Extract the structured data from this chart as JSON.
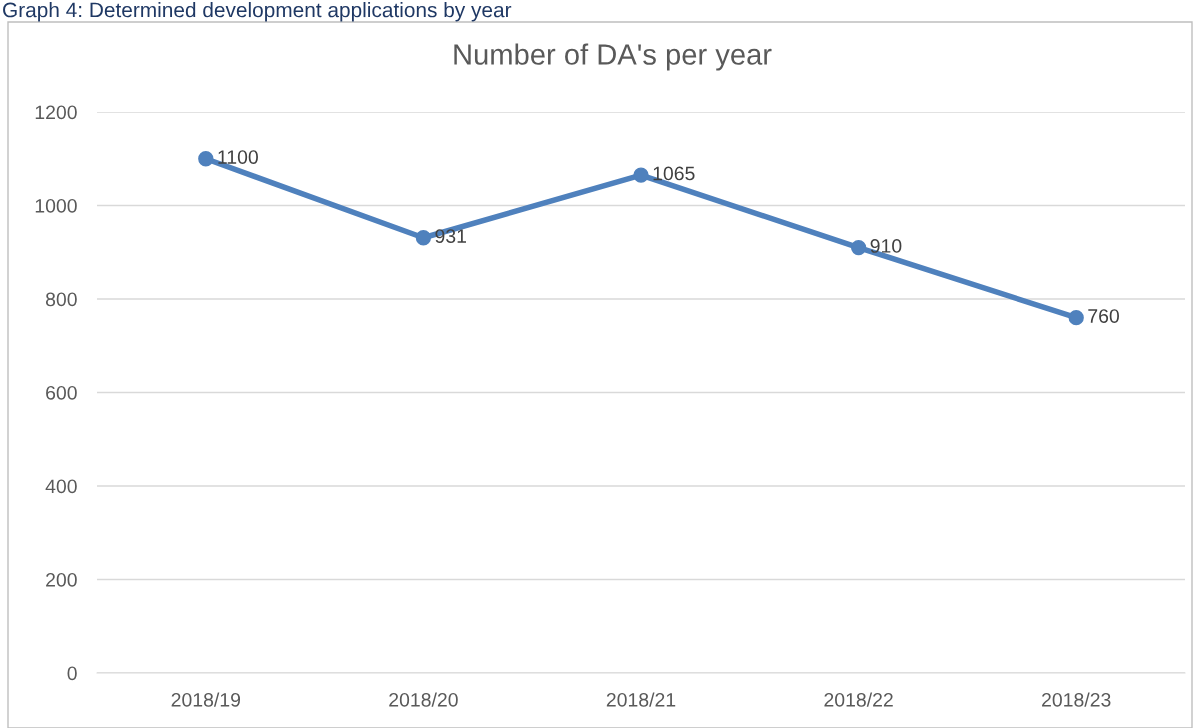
{
  "chart_data": {
    "type": "line",
    "title": "Number of DA's per year",
    "annotations": [
      "Graph 4: Determined development applications by year"
    ],
    "categories": [
      "2018/19",
      "2018/20",
      "2018/21",
      "2018/22",
      "2018/23"
    ],
    "series": [
      {
        "color": "#4f81bd",
        "values": [
          1100,
          931,
          1065,
          910,
          760
        ]
      }
    ],
    "ylim": [
      0,
      1200
    ],
    "yticks": [
      0,
      200,
      400,
      600,
      800,
      1000,
      1200
    ],
    "grid": "y",
    "marker": "circle",
    "line_style": "solid",
    "data_labels": true
  }
}
